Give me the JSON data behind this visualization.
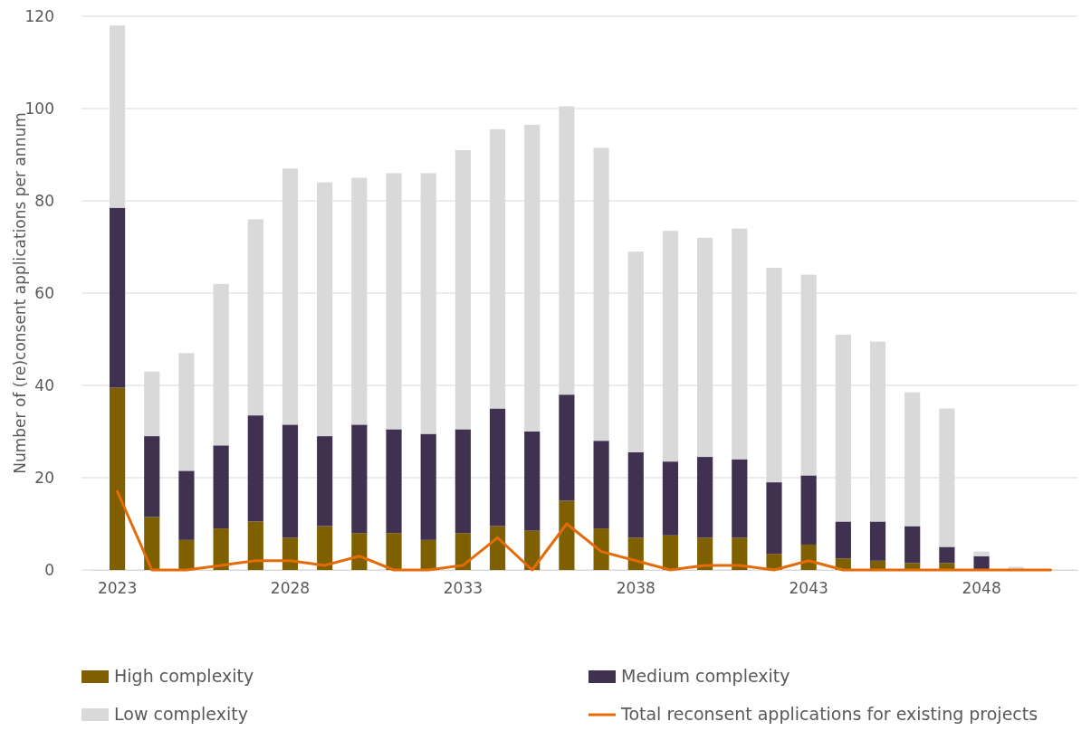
{
  "chart_data": {
    "type": "bar",
    "stacked": true,
    "ylabel": "Number of (re)consent applications per annum",
    "categories": [
      "2023",
      null,
      null,
      null,
      null,
      "2028",
      null,
      null,
      null,
      null,
      "2033",
      null,
      null,
      null,
      null,
      "2038",
      null,
      null,
      null,
      null,
      "2043",
      null,
      null,
      null,
      null,
      "2048",
      null,
      null
    ],
    "series": [
      {
        "name": "High complexity",
        "color": "#7f6000",
        "values": [
          39.5,
          11.5,
          6.5,
          9,
          10.5,
          7,
          9.5,
          8,
          8,
          6.5,
          8,
          9.5,
          8.5,
          15,
          9,
          7,
          7.5,
          7,
          7,
          3.5,
          5.5,
          2.5,
          2,
          1.5,
          1.5,
          0,
          0,
          0
        ]
      },
      {
        "name": "Medium complexity",
        "color": "#403151",
        "values": [
          39,
          17.5,
          15,
          18,
          23,
          24.5,
          19.5,
          23.5,
          22.5,
          23,
          22.5,
          25.5,
          21.5,
          23,
          19,
          18.5,
          16,
          17.5,
          17,
          15.5,
          15,
          8,
          8.5,
          8,
          3.5,
          3,
          0,
          0
        ]
      },
      {
        "name": "Low complexity",
        "color": "#d9d9d9",
        "values": [
          39.5,
          14,
          25.5,
          35,
          42.5,
          55.5,
          55,
          53.5,
          55.5,
          56.5,
          60.5,
          60.5,
          66.5,
          62.5,
          63.5,
          43.5,
          50,
          47.5,
          50,
          46.5,
          43.5,
          40.5,
          39,
          29,
          30,
          1,
          0.7,
          0
        ]
      },
      {
        "name": "Total reconsent applications for existing projects",
        "type": "line",
        "color": "#e36c09",
        "values": [
          17,
          0,
          0,
          1,
          2,
          2,
          1,
          3,
          0,
          0,
          1,
          7,
          0,
          10,
          4,
          2,
          0,
          1,
          1,
          0,
          2,
          0,
          0,
          0,
          0,
          0,
          0,
          0
        ]
      }
    ],
    "ylim": [
      0,
      120
    ],
    "yticks": [
      0,
      20,
      40,
      60,
      80,
      100,
      120
    ],
    "grid": "y",
    "legend": "bottom",
    "marker": "none",
    "line_style": "solid"
  }
}
